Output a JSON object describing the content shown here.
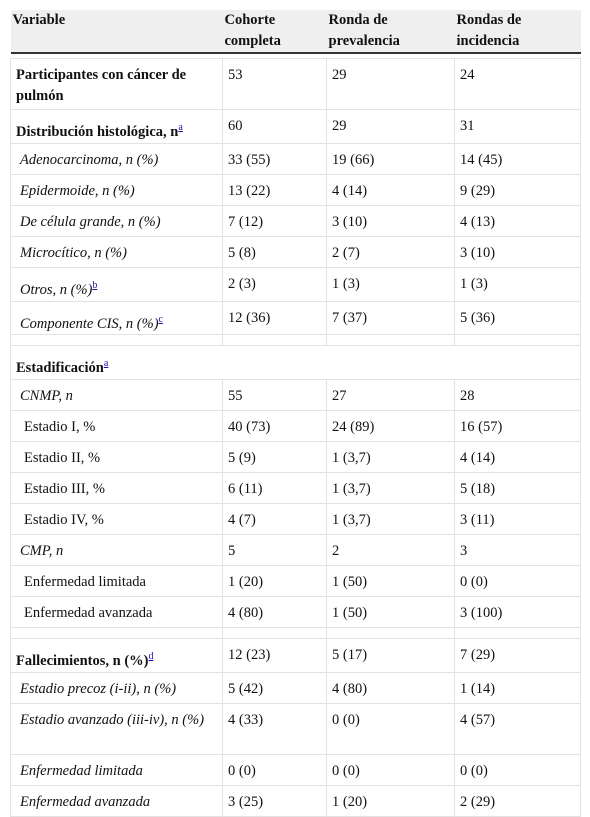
{
  "table": {
    "header": [
      "Variable",
      "Cohorte completa",
      "Ronda de prevalencia",
      "Rondas de incidencia"
    ],
    "rows": [
      {
        "label": "Participantes con cáncer de pulmón",
        "cells": [
          "53",
          "29",
          "24"
        ]
      },
      {
        "label": "Distribución histológica, n",
        "note": "a",
        "cells": [
          "60",
          "29",
          "31"
        ]
      },
      {
        "label": "Adenocarcinoma, n (%)",
        "cells": [
          "33 (55)",
          "19 (66)",
          "14 (45)"
        ]
      },
      {
        "label": "Epidermoide, n (%)",
        "cells": [
          "13 (22)",
          "4 (14)",
          "9 (29)"
        ]
      },
      {
        "label": "De célula grande, n (%)",
        "cells": [
          "7 (12)",
          "3 (10)",
          "4 (13)"
        ]
      },
      {
        "label": "Microcítico, n (%)",
        "cells": [
          "5 (8)",
          "2 (7)",
          "3 (10)"
        ]
      },
      {
        "label": "Otros, n (%)",
        "note": "b",
        "cells": [
          "2 (3)",
          "1 (3)",
          "1 (3)"
        ]
      },
      {
        "label": "Componente CIS, n (%)",
        "note": "c",
        "cells": [
          "12 (36)",
          "7 (37)",
          "5 (36)"
        ]
      },
      {
        "label": "Estadificación",
        "note": "a",
        "cells": []
      },
      {
        "label": "CNMP, n",
        "cells": [
          "55",
          "27",
          "28"
        ]
      },
      {
        "label": "Estadio I, %",
        "cells": [
          "40 (73)",
          "24 (89)",
          "16 (57)"
        ]
      },
      {
        "label": "Estadio II, %",
        "cells": [
          "5 (9)",
          "1 (3,7)",
          "4 (14)"
        ]
      },
      {
        "label": "Estadio III, %",
        "cells": [
          "6 (11)",
          "1 (3,7)",
          "5 (18)"
        ]
      },
      {
        "label": "Estadio IV, %",
        "cells": [
          "4 (7)",
          "1 (3,7)",
          "3 (11)"
        ]
      },
      {
        "label": "CMP, n",
        "cells": [
          "5",
          "2",
          "3"
        ]
      },
      {
        "label": "Enfermedad limitada",
        "cells": [
          "1 (20)",
          "1 (50)",
          "0 (0)"
        ]
      },
      {
        "label": "Enfermedad avanzada",
        "cells": [
          "4 (80)",
          "1 (50)",
          "3 (100)"
        ]
      },
      {
        "label": "Fallecimientos, n (%)",
        "note": "d",
        "cells": [
          "12 (23)",
          "5 (17)",
          "7 (29)"
        ]
      },
      {
        "label": "Estadio precoz (i-ii), n (%)",
        "cells": [
          "5 (42)",
          "4 (80)",
          "1 (14)"
        ]
      },
      {
        "label": "Estadio avanzado (iii-iv), n (%)",
        "cells": [
          "4 (33)",
          "0 (0)",
          "4 (57)"
        ]
      },
      {
        "label": "Enfermedad limitada",
        "cells": [
          "0 (0)",
          "0 (0)",
          "0 (0)"
        ]
      },
      {
        "label": "Enfermedad avanzada",
        "cells": [
          "3 (25)",
          "1 (20)",
          "2 (29)"
        ]
      }
    ]
  }
}
